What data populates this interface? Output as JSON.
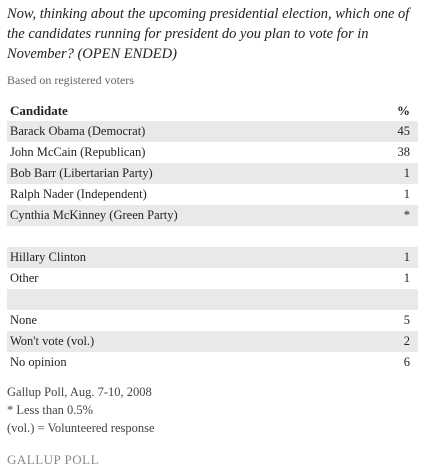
{
  "header": {
    "title": "Now, thinking about the upcoming presidential election, which one of the candidates running for president do you plan to vote for in November? (OPEN ENDED)",
    "subtitle": "Based on registered voters"
  },
  "table": {
    "columns": [
      "Candidate",
      "%"
    ],
    "rows": [
      [
        "Barack Obama (Democrat)",
        45
      ],
      [
        "John McCain (Republican)",
        38
      ],
      [
        "Bob Barr (Libertarian Party)",
        1
      ],
      [
        "Ralph Nader (Independent)",
        1
      ],
      [
        "Cynthia McKinney (Green Party)",
        "*"
      ],
      [
        "Hillary Clinton",
        1
      ],
      [
        "Other",
        1
      ],
      [
        "None",
        5
      ],
      [
        "Won't vote (vol.)",
        2
      ],
      [
        "No opinion",
        6
      ]
    ]
  },
  "footer": {
    "notes": [
      "Gallup Poll, Aug. 7-10, 2008",
      "* Less than 0.5%",
      "(vol.) = Volunteered response"
    ],
    "logo": "GALLUP POLL"
  }
}
